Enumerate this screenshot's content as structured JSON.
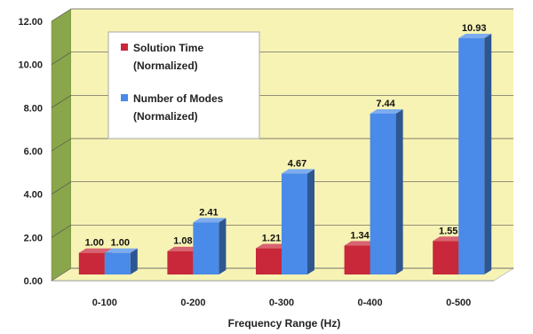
{
  "chart_data": {
    "type": "bar",
    "categories": [
      "0-100",
      "0-200",
      "0-300",
      "0-400",
      "0-500"
    ],
    "series": [
      {
        "name": "Solution Time (Normalized)",
        "values": [
          1.0,
          1.08,
          1.21,
          1.34,
          1.55
        ],
        "labels": [
          "1.00",
          "1.08",
          "1.21",
          "1.34",
          "1.55"
        ],
        "color": "#c8283a"
      },
      {
        "name": "Number of Modes (Normalized)",
        "values": [
          1.0,
          2.41,
          4.67,
          7.44,
          10.93
        ],
        "labels": [
          "1.00",
          "2.41",
          "4.67",
          "7.44",
          "10.93"
        ],
        "color": "#4a8ae8"
      }
    ],
    "legend": [
      {
        "line1": "Solution Time",
        "line2": "(Normalized)"
      },
      {
        "line1": "Number of Modes",
        "line2": "(Normalized)"
      }
    ],
    "xlabel": "Frequency Range (Hz)",
    "ylabel": "",
    "ylim": [
      0,
      12
    ],
    "yticks": [
      "0.00",
      "2.00",
      "4.00",
      "6.00",
      "8.00",
      "10.00",
      "12.00"
    ],
    "grid": true,
    "legend_position": "top-left",
    "wall_color": "#f7f3b4",
    "side_wall_color": "#8aa64a",
    "floor_color": "#f7f3b4"
  }
}
